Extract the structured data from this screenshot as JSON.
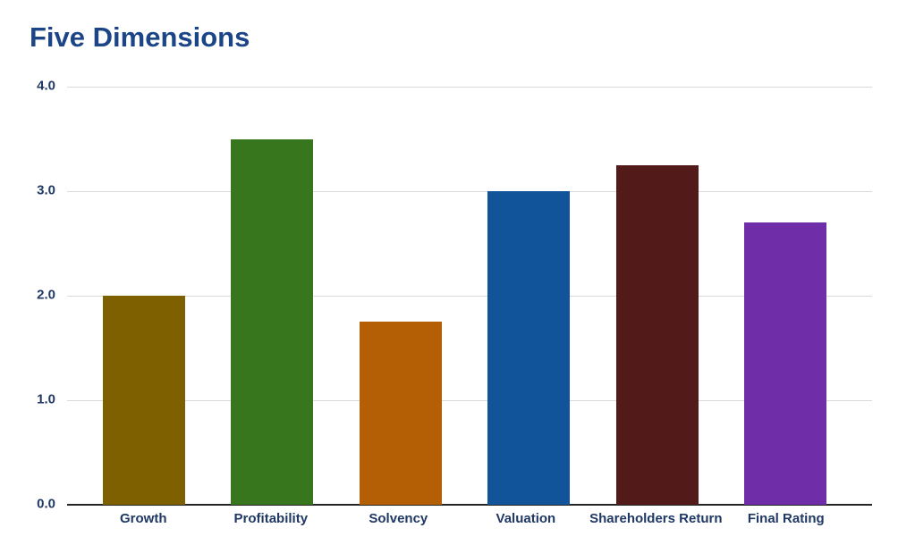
{
  "page": {
    "background_color": "#ffffff"
  },
  "title": {
    "text": "Five Dimensions",
    "color": "#1c4587"
  },
  "chart_data": {
    "type": "bar",
    "title": "Five Dimensions",
    "categories": [
      "Growth",
      "Profitability",
      "Solvency",
      "Valuation",
      "Shareholders Return",
      "Final Rating"
    ],
    "values": [
      2.0,
      3.5,
      1.75,
      3.0,
      3.25,
      2.7
    ],
    "bar_colors": [
      "#7f6000",
      "#38761d",
      "#b45f06",
      "#11549a",
      "#521b1a",
      "#6f2da8"
    ],
    "xlabel": "",
    "ylabel": "",
    "ylim": [
      0,
      4
    ],
    "ytick_labels": [
      "4.0",
      "3.0",
      "2.0",
      "1.0",
      "0.0"
    ],
    "ytick_values": [
      4.0,
      3.0,
      2.0,
      1.0,
      0.0
    ],
    "grid": true,
    "legend": false,
    "legend_position": "none",
    "tick_label_color": "#1f3864",
    "gridline_color": "#d9d9d9",
    "axis_line_color": "#262626"
  }
}
